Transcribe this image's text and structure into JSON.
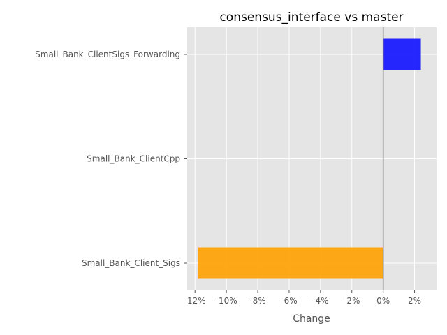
{
  "chart_data": {
    "type": "bar",
    "orientation": "horizontal",
    "title": "consensus_interface vs master",
    "xlabel": "Change",
    "ylabel": "",
    "categories": [
      "Small_Bank_ClientSigs_Forwarding",
      "Small_Bank_ClientCpp",
      "Small_Bank_Client_Sigs"
    ],
    "values": [
      2.4,
      0.0,
      -11.8
    ],
    "xlim": [
      -12.5,
      3.4
    ],
    "xticks": [
      -12,
      -10,
      -8,
      -6,
      -4,
      -2,
      0,
      2
    ],
    "xtick_labels": [
      "-12%",
      "-10%",
      "-8%",
      "-6%",
      "-4%",
      "-2%",
      "0%",
      "2%"
    ],
    "grid": true,
    "colors": {
      "positive": "#1010ff",
      "negative": "#ffa000",
      "plot_background": "#e5e5e5",
      "grid": "#ffffff",
      "zero_line": "#808080"
    }
  }
}
